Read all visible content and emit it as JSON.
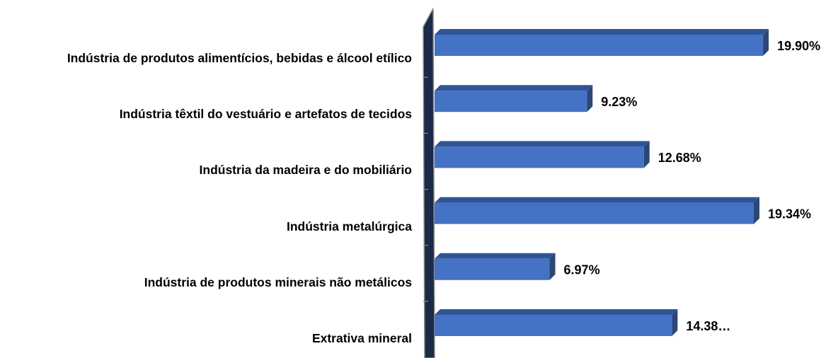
{
  "chart_data": {
    "type": "bar",
    "orientation": "horizontal",
    "categories": [
      "Indústria de produtos alimentícios, bebidas e álcool etílico",
      "Indústria têxtil do vestuário e artefatos de tecidos",
      "Indústria da madeira e do mobiliário",
      "Indústria metalúrgica",
      "Indústria de produtos minerais não metálicos",
      "Extrativa mineral"
    ],
    "values": [
      19.9,
      9.23,
      12.68,
      19.34,
      6.97,
      14.38
    ],
    "value_labels": [
      "19.90%",
      "9.23%",
      "12.68%",
      "19.34%",
      "6.97%",
      "14.38…"
    ],
    "color": "#4472c4"
  }
}
